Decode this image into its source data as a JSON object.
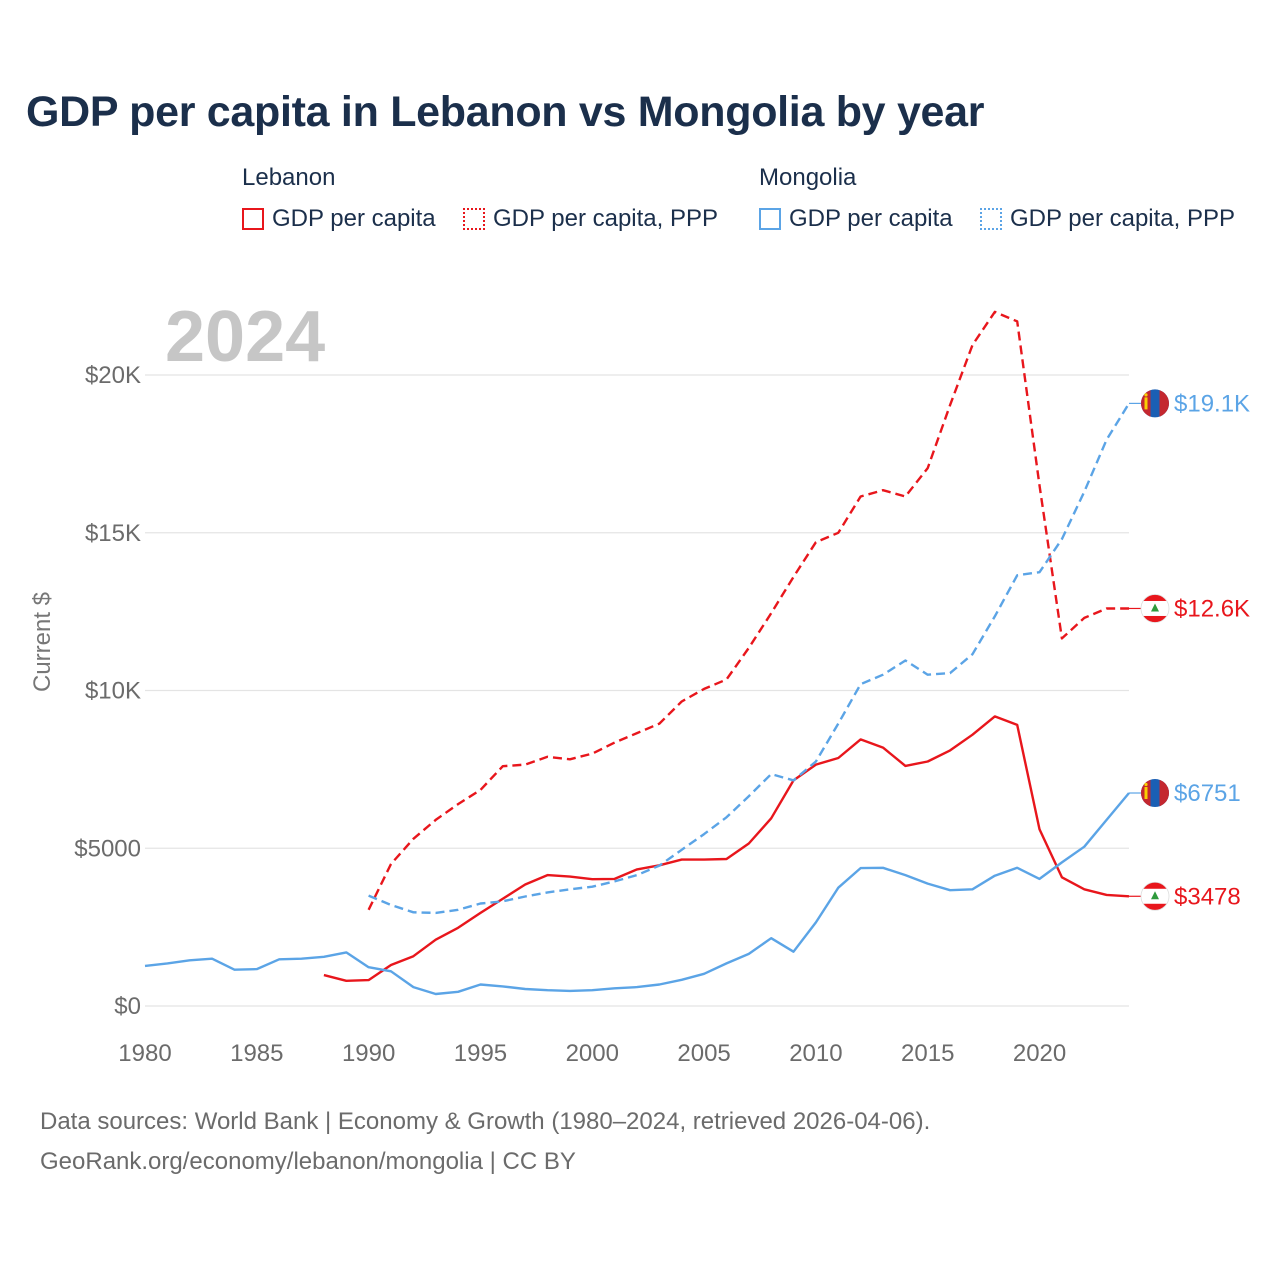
{
  "chart_data": {
    "type": "line",
    "title": "GDP per capita in Lebanon vs Mongolia by year",
    "year_label": "2024",
    "ylabel": "Current $",
    "xlabel": "",
    "xlim": [
      1980,
      2024
    ],
    "ylim": [
      0,
      22000
    ],
    "x_ticks": [
      1980,
      1985,
      1990,
      1995,
      2000,
      2005,
      2010,
      2015,
      2020
    ],
    "x_tick_labels": [
      "1980",
      "1985",
      "1990",
      "1995",
      "2000",
      "2005",
      "2010",
      "2015",
      "2020"
    ],
    "y_ticks": [
      0,
      5000,
      10000,
      15000,
      20000
    ],
    "y_tick_labels": [
      "$0",
      "$5000",
      "$10K",
      "$15K",
      "$20K"
    ],
    "colors": {
      "lebanon": "#e8161c",
      "mongolia": "#5ba4e6"
    },
    "legend": {
      "groups": [
        {
          "name": "Lebanon",
          "items": [
            "GDP per capita",
            "GDP per capita, PPP"
          ]
        },
        {
          "name": "Mongolia",
          "items": [
            "GDP per capita",
            "GDP per capita, PPP"
          ]
        }
      ]
    },
    "series": [
      {
        "name": "Lebanon GDP per capita",
        "country": "lebanon",
        "dash": false,
        "end_label": "$3478",
        "points": [
          [
            1988,
            980
          ],
          [
            1989,
            800
          ],
          [
            1990,
            820
          ],
          [
            1991,
            1300
          ],
          [
            1992,
            1580
          ],
          [
            1993,
            2100
          ],
          [
            1994,
            2480
          ],
          [
            1995,
            2950
          ],
          [
            1996,
            3400
          ],
          [
            1997,
            3850
          ],
          [
            1998,
            4150
          ],
          [
            1999,
            4100
          ],
          [
            2000,
            4020
          ],
          [
            2001,
            4030
          ],
          [
            2002,
            4330
          ],
          [
            2003,
            4460
          ],
          [
            2004,
            4640
          ],
          [
            2005,
            4640
          ],
          [
            2006,
            4660
          ],
          [
            2007,
            5150
          ],
          [
            2008,
            5950
          ],
          [
            2009,
            7150
          ],
          [
            2010,
            7650
          ],
          [
            2011,
            7860
          ],
          [
            2012,
            8450
          ],
          [
            2013,
            8190
          ],
          [
            2014,
            7610
          ],
          [
            2015,
            7750
          ],
          [
            2016,
            8100
          ],
          [
            2017,
            8600
          ],
          [
            2018,
            9180
          ],
          [
            2019,
            8910
          ],
          [
            2020,
            5600
          ],
          [
            2021,
            4080
          ],
          [
            2022,
            3700
          ],
          [
            2023,
            3520
          ],
          [
            2024,
            3478
          ]
        ]
      },
      {
        "name": "Lebanon GDP per capita, PPP",
        "country": "lebanon",
        "dash": true,
        "end_label": "$12.6K",
        "points": [
          [
            1990,
            3050
          ],
          [
            1991,
            4500
          ],
          [
            1992,
            5300
          ],
          [
            1993,
            5900
          ],
          [
            1994,
            6400
          ],
          [
            1995,
            6850
          ],
          [
            1996,
            7600
          ],
          [
            1997,
            7650
          ],
          [
            1998,
            7900
          ],
          [
            1999,
            7820
          ],
          [
            2000,
            8000
          ],
          [
            2001,
            8350
          ],
          [
            2002,
            8650
          ],
          [
            2003,
            8950
          ],
          [
            2004,
            9650
          ],
          [
            2005,
            10050
          ],
          [
            2006,
            10350
          ],
          [
            2007,
            11350
          ],
          [
            2008,
            12450
          ],
          [
            2009,
            13600
          ],
          [
            2010,
            14700
          ],
          [
            2011,
            15000
          ],
          [
            2012,
            16150
          ],
          [
            2013,
            16350
          ],
          [
            2014,
            16150
          ],
          [
            2015,
            17050
          ],
          [
            2016,
            19050
          ],
          [
            2017,
            20950
          ],
          [
            2018,
            22000
          ],
          [
            2019,
            21700
          ],
          [
            2020,
            16500
          ],
          [
            2021,
            11650
          ],
          [
            2022,
            12300
          ],
          [
            2023,
            12600
          ],
          [
            2024,
            12600
          ]
        ]
      },
      {
        "name": "Mongolia GDP per capita",
        "country": "mongolia",
        "dash": false,
        "end_label": "$6751",
        "points": [
          [
            1980,
            1270
          ],
          [
            1981,
            1350
          ],
          [
            1982,
            1450
          ],
          [
            1983,
            1500
          ],
          [
            1984,
            1150
          ],
          [
            1985,
            1170
          ],
          [
            1986,
            1480
          ],
          [
            1987,
            1500
          ],
          [
            1988,
            1560
          ],
          [
            1989,
            1700
          ],
          [
            1990,
            1230
          ],
          [
            1991,
            1100
          ],
          [
            1992,
            600
          ],
          [
            1993,
            380
          ],
          [
            1994,
            450
          ],
          [
            1995,
            680
          ],
          [
            1996,
            620
          ],
          [
            1997,
            540
          ],
          [
            1998,
            500
          ],
          [
            1999,
            480
          ],
          [
            2000,
            500
          ],
          [
            2001,
            560
          ],
          [
            2002,
            600
          ],
          [
            2003,
            680
          ],
          [
            2004,
            830
          ],
          [
            2005,
            1020
          ],
          [
            2006,
            1350
          ],
          [
            2007,
            1650
          ],
          [
            2008,
            2150
          ],
          [
            2009,
            1720
          ],
          [
            2010,
            2650
          ],
          [
            2011,
            3750
          ],
          [
            2012,
            4370
          ],
          [
            2013,
            4380
          ],
          [
            2014,
            4150
          ],
          [
            2015,
            3880
          ],
          [
            2016,
            3670
          ],
          [
            2017,
            3700
          ],
          [
            2018,
            4130
          ],
          [
            2019,
            4380
          ],
          [
            2020,
            4030
          ],
          [
            2021,
            4550
          ],
          [
            2022,
            5050
          ],
          [
            2023,
            5900
          ],
          [
            2024,
            6751
          ]
        ]
      },
      {
        "name": "Mongolia GDP per capita, PPP",
        "country": "mongolia",
        "dash": true,
        "end_label": "$19.1K",
        "points": [
          [
            1990,
            3500
          ],
          [
            1991,
            3200
          ],
          [
            1992,
            2970
          ],
          [
            1993,
            2950
          ],
          [
            1994,
            3050
          ],
          [
            1995,
            3250
          ],
          [
            1996,
            3320
          ],
          [
            1997,
            3470
          ],
          [
            1998,
            3600
          ],
          [
            1999,
            3700
          ],
          [
            2000,
            3780
          ],
          [
            2001,
            3950
          ],
          [
            2002,
            4150
          ],
          [
            2003,
            4450
          ],
          [
            2004,
            4950
          ],
          [
            2005,
            5450
          ],
          [
            2006,
            5980
          ],
          [
            2007,
            6650
          ],
          [
            2008,
            7350
          ],
          [
            2009,
            7150
          ],
          [
            2010,
            7750
          ],
          [
            2011,
            8950
          ],
          [
            2012,
            10200
          ],
          [
            2013,
            10500
          ],
          [
            2014,
            10950
          ],
          [
            2015,
            10500
          ],
          [
            2016,
            10550
          ],
          [
            2017,
            11150
          ],
          [
            2018,
            12350
          ],
          [
            2019,
            13650
          ],
          [
            2020,
            13750
          ],
          [
            2021,
            14800
          ],
          [
            2022,
            16300
          ],
          [
            2023,
            17950
          ],
          [
            2024,
            19100
          ]
        ]
      }
    ]
  },
  "footer": {
    "line1": "Data sources: World Bank | Economy & Growth (1980–2024, retrieved 2026-04-06).",
    "line2": "GeoRank.org/economy/lebanon/mongolia | CC BY"
  }
}
